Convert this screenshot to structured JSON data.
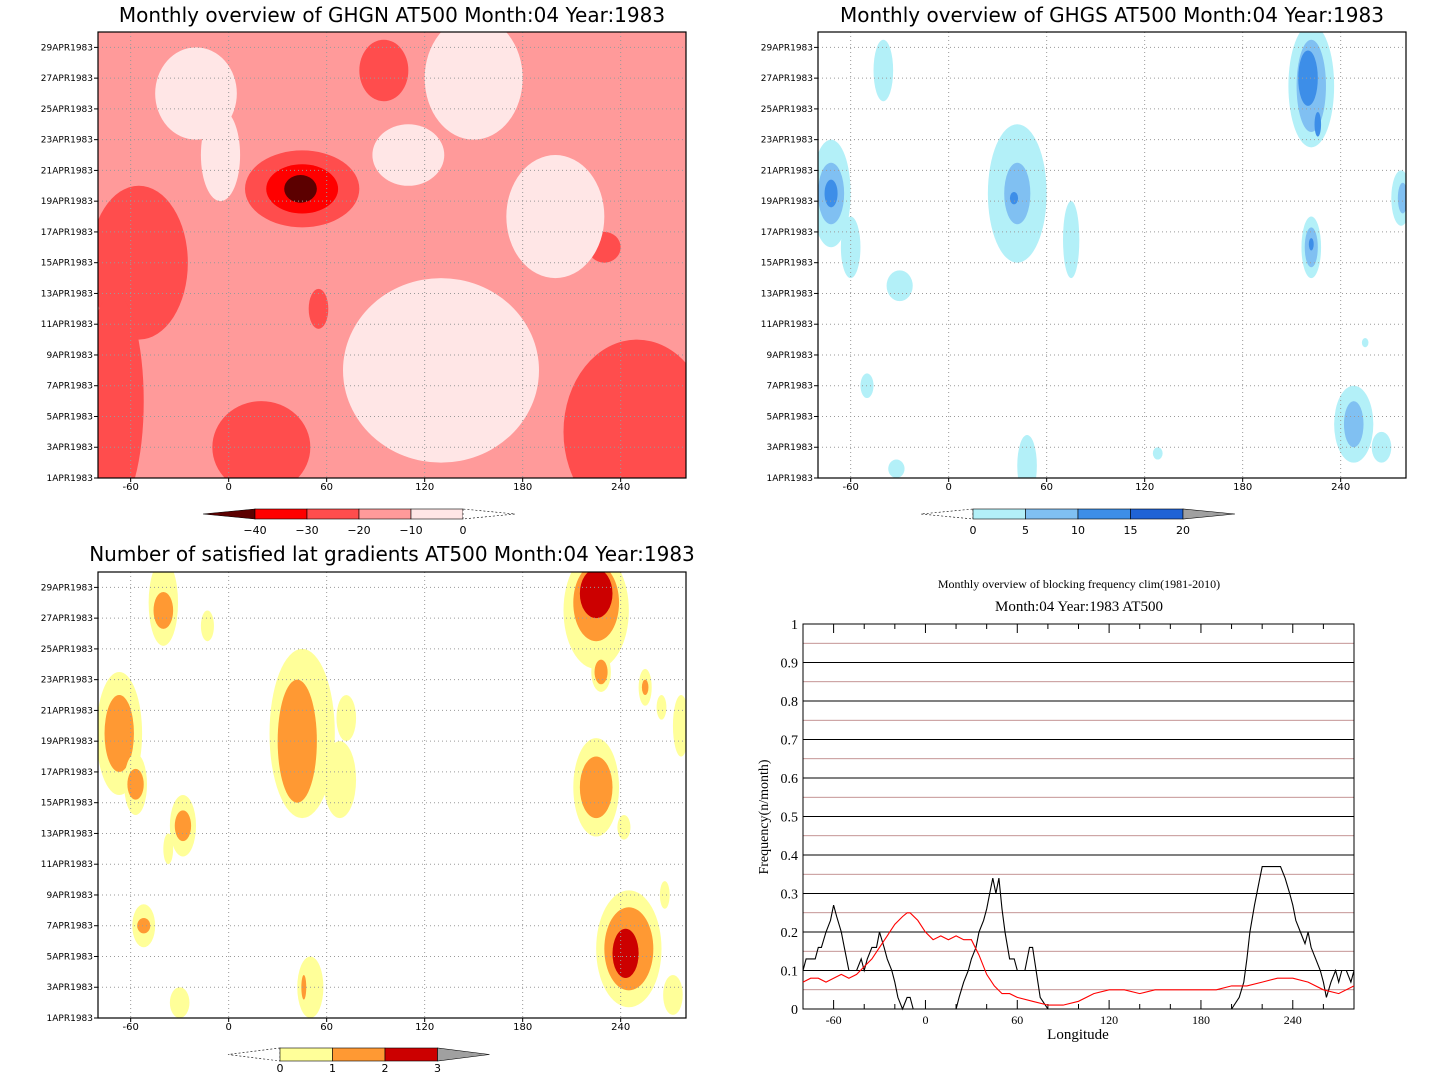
{
  "chart_data": [
    {
      "type": "heatmap",
      "title": "Monthly overview of GHGN AT500 Month:04 Year:1983",
      "x_ticks": [
        "-60",
        "0",
        "60",
        "120",
        "180",
        "240"
      ],
      "y_ticks": [
        "1APR1983",
        "3APR1983",
        "5APR1983",
        "7APR1983",
        "9APR1983",
        "11APR1983",
        "13APR1983",
        "15APR1983",
        "17APR1983",
        "19APR1983",
        "21APR1983",
        "23APR1983",
        "25APR1983",
        "27APR1983",
        "29APR1983"
      ],
      "xlim": [
        -80,
        280
      ],
      "ylim": [
        1,
        30
      ],
      "colorbar": {
        "ticks": [
          "−40",
          "−30",
          "−20",
          "−10",
          "0"
        ],
        "colors": [
          "#5c0000",
          "#ff0000",
          "#ff4d4d",
          "#ff9a9a",
          "#ffe6e6"
        ],
        "open_end_color": "#ffffff"
      },
      "blobs": [
        {
          "x": 45,
          "y": 19.8,
          "rx": 35,
          "ry": 2.5,
          "level": 3
        },
        {
          "x": 45,
          "y": 19.8,
          "rx": 22,
          "ry": 1.6,
          "level": 4
        },
        {
          "x": 44,
          "y": 19.8,
          "rx": 10,
          "ry": 0.9,
          "level": 5
        },
        {
          "x": -55,
          "y": 15,
          "rx": 30,
          "ry": 5,
          "level": 3
        },
        {
          "x": -70,
          "y": 6,
          "rx": 18,
          "ry": 7,
          "level": 3
        },
        {
          "x": 250,
          "y": 4,
          "rx": 45,
          "ry": 6,
          "level": 3
        },
        {
          "x": 20,
          "y": 3,
          "rx": 30,
          "ry": 3,
          "level": 3
        },
        {
          "x": 95,
          "y": 27.5,
          "rx": 15,
          "ry": 2,
          "level": 3
        },
        {
          "x": 55,
          "y": 12,
          "rx": 6,
          "ry": 1.3,
          "level": 3
        },
        {
          "x": 230,
          "y": 16,
          "rx": 10,
          "ry": 1,
          "level": 3
        },
        {
          "x": 130,
          "y": 8,
          "rx": 60,
          "ry": 6,
          "level": 1
        },
        {
          "x": 200,
          "y": 18,
          "rx": 30,
          "ry": 4,
          "level": 1
        },
        {
          "x": 150,
          "y": 27,
          "rx": 30,
          "ry": 4,
          "level": 1
        },
        {
          "x": -20,
          "y": 26,
          "rx": 25,
          "ry": 3,
          "level": 1
        },
        {
          "x": 110,
          "y": 22,
          "rx": 22,
          "ry": 2,
          "level": 1
        },
        {
          "x": -5,
          "y": 22,
          "rx": 12,
          "ry": 3,
          "level": 1
        }
      ]
    },
    {
      "type": "heatmap",
      "title": "Monthly overview of GHGS AT500 Month:04 Year:1983",
      "x_ticks": [
        "-60",
        "0",
        "60",
        "120",
        "180",
        "240"
      ],
      "y_ticks": [
        "1APR1983",
        "3APR1983",
        "5APR1983",
        "7APR1983",
        "9APR1983",
        "11APR1983",
        "13APR1983",
        "15APR1983",
        "17APR1983",
        "19APR1983",
        "21APR1983",
        "23APR1983",
        "25APR1983",
        "27APR1983",
        "29APR1983"
      ],
      "xlim": [
        -80,
        280
      ],
      "ylim": [
        1,
        30
      ],
      "colorbar": {
        "ticks": [
          "0",
          "5",
          "10",
          "15",
          "20"
        ],
        "colors": [
          "#b3f0f8",
          "#80c0f2",
          "#3d8ee8",
          "#1f63d6"
        ],
        "open_end_color": "#a0a0a0"
      },
      "blobs": [
        {
          "x": -72,
          "y": 19.5,
          "rx": 12,
          "ry": 3.5,
          "level": 1
        },
        {
          "x": -72,
          "y": 19.5,
          "rx": 8,
          "ry": 2,
          "level": 2
        },
        {
          "x": -72,
          "y": 19.5,
          "rx": 4,
          "ry": 0.9,
          "level": 3
        },
        {
          "x": -60,
          "y": 16,
          "rx": 6,
          "ry": 2,
          "level": 1
        },
        {
          "x": -40,
          "y": 27.5,
          "rx": 6,
          "ry": 2,
          "level": 1
        },
        {
          "x": 42,
          "y": 19.5,
          "rx": 18,
          "ry": 4.5,
          "level": 1
        },
        {
          "x": 42,
          "y": 19.5,
          "rx": 8,
          "ry": 2,
          "level": 2
        },
        {
          "x": 40,
          "y": 19.2,
          "rx": 2.5,
          "ry": 0.4,
          "level": 3
        },
        {
          "x": 75,
          "y": 16.5,
          "rx": 5,
          "ry": 2.5,
          "level": 1
        },
        {
          "x": -30,
          "y": 13.5,
          "rx": 8,
          "ry": 1,
          "level": 1
        },
        {
          "x": -50,
          "y": 7,
          "rx": 4,
          "ry": 0.8,
          "level": 1
        },
        {
          "x": 48,
          "y": 1.8,
          "rx": 6,
          "ry": 2,
          "level": 1
        },
        {
          "x": -32,
          "y": 1.6,
          "rx": 5,
          "ry": 0.6,
          "level": 1
        },
        {
          "x": 222,
          "y": 26.5,
          "rx": 14,
          "ry": 4,
          "level": 1
        },
        {
          "x": 222,
          "y": 26.5,
          "rx": 9,
          "ry": 3,
          "level": 2
        },
        {
          "x": 220,
          "y": 27,
          "rx": 6,
          "ry": 1.8,
          "level": 3
        },
        {
          "x": 226,
          "y": 24,
          "rx": 2,
          "ry": 0.8,
          "level": 3
        },
        {
          "x": 222,
          "y": 16,
          "rx": 6,
          "ry": 2,
          "level": 1
        },
        {
          "x": 222,
          "y": 16,
          "rx": 4,
          "ry": 1.3,
          "level": 2
        },
        {
          "x": 222,
          "y": 16.2,
          "rx": 1.5,
          "ry": 0.4,
          "level": 3
        },
        {
          "x": 248,
          "y": 4.5,
          "rx": 12,
          "ry": 2.5,
          "level": 1
        },
        {
          "x": 248,
          "y": 4.5,
          "rx": 6,
          "ry": 1.5,
          "level": 2
        },
        {
          "x": 277,
          "y": 19.2,
          "rx": 6,
          "ry": 1.8,
          "level": 1
        },
        {
          "x": 278,
          "y": 19.2,
          "rx": 3,
          "ry": 1,
          "level": 2
        },
        {
          "x": 265,
          "y": 3,
          "rx": 6,
          "ry": 1,
          "level": 1
        },
        {
          "x": 128,
          "y": 2.6,
          "rx": 3,
          "ry": 0.4,
          "level": 1
        },
        {
          "x": 255,
          "y": 9.8,
          "rx": 2,
          "ry": 0.3,
          "level": 1
        }
      ]
    },
    {
      "type": "heatmap",
      "title": "Number of satisfied lat gradients AT500 Month:04 Year:1983",
      "x_ticks": [
        "-60",
        "0",
        "60",
        "120",
        "180",
        "240"
      ],
      "y_ticks": [
        "1APR1983",
        "3APR1983",
        "5APR1983",
        "7APR1983",
        "9APR1983",
        "11APR1983",
        "13APR1983",
        "15APR1983",
        "17APR1983",
        "19APR1983",
        "21APR1983",
        "23APR1983",
        "25APR1983",
        "27APR1983",
        "29APR1983"
      ],
      "xlim": [
        -80,
        280
      ],
      "ylim": [
        1,
        30
      ],
      "colorbar": {
        "ticks": [
          "0",
          "1",
          "2",
          "3"
        ],
        "colors": [
          "#ffff99",
          "#ff9933",
          "#cc0000"
        ],
        "open_end_color": "#a0a0a0"
      },
      "blobs": [
        {
          "x": -67,
          "y": 19.5,
          "rx": 14,
          "ry": 4,
          "level": 1
        },
        {
          "x": -67,
          "y": 19.5,
          "rx": 9,
          "ry": 2.5,
          "level": 2
        },
        {
          "x": -57,
          "y": 16.2,
          "rx": 7,
          "ry": 2,
          "level": 1
        },
        {
          "x": -57,
          "y": 16.2,
          "rx": 5,
          "ry": 1,
          "level": 2
        },
        {
          "x": -40,
          "y": 28,
          "rx": 9,
          "ry": 2.8,
          "level": 1
        },
        {
          "x": -40,
          "y": 27.5,
          "rx": 6,
          "ry": 1.2,
          "level": 2
        },
        {
          "x": -13,
          "y": 26.5,
          "rx": 4,
          "ry": 1,
          "level": 1
        },
        {
          "x": -28,
          "y": 13.5,
          "rx": 8,
          "ry": 2,
          "level": 1
        },
        {
          "x": -28,
          "y": 13.5,
          "rx": 5,
          "ry": 1,
          "level": 2
        },
        {
          "x": -37,
          "y": 12,
          "rx": 3,
          "ry": 1,
          "level": 1
        },
        {
          "x": -52,
          "y": 7,
          "rx": 7,
          "ry": 1.4,
          "level": 1
        },
        {
          "x": -52,
          "y": 7,
          "rx": 4,
          "ry": 0.5,
          "level": 2
        },
        {
          "x": -30,
          "y": 2,
          "rx": 6,
          "ry": 1,
          "level": 1
        },
        {
          "x": 45,
          "y": 19.5,
          "rx": 20,
          "ry": 5.5,
          "level": 1
        },
        {
          "x": 42,
          "y": 19,
          "rx": 12,
          "ry": 4,
          "level": 2
        },
        {
          "x": 72,
          "y": 20.5,
          "rx": 6,
          "ry": 1.5,
          "level": 1
        },
        {
          "x": 68,
          "y": 16.5,
          "rx": 10,
          "ry": 2.5,
          "level": 1
        },
        {
          "x": 50,
          "y": 3,
          "rx": 8,
          "ry": 2,
          "level": 1
        },
        {
          "x": 46,
          "y": 3,
          "rx": 1.5,
          "ry": 0.8,
          "level": 2
        },
        {
          "x": 225,
          "y": 27.5,
          "rx": 20,
          "ry": 3.8,
          "level": 1
        },
        {
          "x": 225,
          "y": 28,
          "rx": 14,
          "ry": 2.5,
          "level": 2
        },
        {
          "x": 225,
          "y": 28.6,
          "rx": 10,
          "ry": 1.6,
          "level": 3
        },
        {
          "x": 228,
          "y": 23.5,
          "rx": 6,
          "ry": 1.3,
          "level": 1
        },
        {
          "x": 228,
          "y": 23.5,
          "rx": 4,
          "ry": 0.8,
          "level": 2
        },
        {
          "x": 225,
          "y": 16,
          "rx": 14,
          "ry": 3.2,
          "level": 1
        },
        {
          "x": 225,
          "y": 16,
          "rx": 10,
          "ry": 2,
          "level": 2
        },
        {
          "x": 245,
          "y": 5.5,
          "rx": 20,
          "ry": 3.8,
          "level": 1
        },
        {
          "x": 245,
          "y": 5.5,
          "rx": 15,
          "ry": 2.7,
          "level": 2
        },
        {
          "x": 243,
          "y": 5.2,
          "rx": 8,
          "ry": 1.6,
          "level": 3
        },
        {
          "x": 255,
          "y": 22.5,
          "rx": 4,
          "ry": 1.2,
          "level": 1
        },
        {
          "x": 255,
          "y": 22.5,
          "rx": 2,
          "ry": 0.5,
          "level": 2
        },
        {
          "x": 265,
          "y": 21.2,
          "rx": 3,
          "ry": 0.8,
          "level": 1
        },
        {
          "x": 277,
          "y": 20,
          "rx": 5,
          "ry": 2,
          "level": 1
        },
        {
          "x": 267,
          "y": 9,
          "rx": 3,
          "ry": 0.9,
          "level": 1
        },
        {
          "x": 272,
          "y": 2.5,
          "rx": 6,
          "ry": 1.3,
          "level": 1
        },
        {
          "x": 242,
          "y": 13.4,
          "rx": 4,
          "ry": 0.8,
          "level": 1
        }
      ]
    },
    {
      "type": "line",
      "title": "Monthly overview of blocking frequency clim(1981-2010)",
      "subtitle": "Month:04 Year:1983  AT500",
      "xlabel": "Longitude",
      "ylabel": "Frequency(n/month)",
      "xlim": [
        -80,
        280
      ],
      "ylim": [
        0,
        1
      ],
      "x_ticks": [
        "-60",
        "0",
        "60",
        "120",
        "180",
        "240"
      ],
      "y_ticks": [
        "0",
        "0.1",
        "0.2",
        "0.3",
        "0.4",
        "0.5",
        "0.6",
        "0.7",
        "0.8",
        "0.9",
        "1"
      ],
      "series": [
        {
          "color": "#000000",
          "x": [
            -80,
            -78,
            -75,
            -72,
            -70,
            -68,
            -65,
            -62,
            -60,
            -58,
            -55,
            -53,
            -50,
            -48,
            -45,
            -42,
            -40,
            -38,
            -35,
            -32,
            -30,
            -27,
            -25,
            -22,
            -20,
            -18,
            -15,
            -12,
            -10,
            -8,
            -5,
            -2,
            0,
            5,
            10,
            15,
            18,
            20,
            22,
            25,
            28,
            30,
            33,
            35,
            38,
            40,
            42,
            44,
            46,
            48,
            50,
            52,
            55,
            58,
            60,
            62,
            65,
            68,
            70,
            75,
            80,
            90,
            100,
            110,
            120,
            130,
            140,
            150,
            160,
            170,
            180,
            190,
            200,
            205,
            208,
            210,
            212,
            215,
            218,
            220,
            222,
            225,
            228,
            230,
            232,
            235,
            238,
            240,
            242,
            245,
            248,
            250,
            252,
            255,
            258,
            260,
            262,
            265,
            268,
            270,
            272,
            275,
            278,
            280
          ],
          "y": [
            0.1,
            0.13,
            0.13,
            0.13,
            0.16,
            0.16,
            0.2,
            0.23,
            0.27,
            0.24,
            0.2,
            0.16,
            0.1,
            0.1,
            0.1,
            0.13,
            0.1,
            0.13,
            0.16,
            0.16,
            0.2,
            0.16,
            0.13,
            0.1,
            0.07,
            0.03,
            0.0,
            0.03,
            0.03,
            0.0,
            0.0,
            0.0,
            0.0,
            0.0,
            0.0,
            0.0,
            0.0,
            0.0,
            0.03,
            0.07,
            0.1,
            0.13,
            0.16,
            0.2,
            0.23,
            0.26,
            0.3,
            0.34,
            0.3,
            0.34,
            0.26,
            0.2,
            0.13,
            0.13,
            0.1,
            0.1,
            0.1,
            0.16,
            0.16,
            0.03,
            0.0,
            0.0,
            0.0,
            0.0,
            0.0,
            0.0,
            0.0,
            0.0,
            0.0,
            0.0,
            0.0,
            0.0,
            0.0,
            0.03,
            0.07,
            0.13,
            0.2,
            0.27,
            0.33,
            0.37,
            0.37,
            0.37,
            0.37,
            0.37,
            0.37,
            0.34,
            0.3,
            0.27,
            0.23,
            0.2,
            0.17,
            0.2,
            0.16,
            0.13,
            0.1,
            0.07,
            0.03,
            0.07,
            0.1,
            0.07,
            0.1,
            0.1,
            0.07,
            0.1
          ]
        },
        {
          "color": "#ff0000",
          "x": [
            -80,
            -75,
            -70,
            -65,
            -60,
            -55,
            -50,
            -45,
            -40,
            -35,
            -30,
            -25,
            -20,
            -15,
            -12,
            -10,
            -5,
            0,
            5,
            10,
            15,
            20,
            25,
            30,
            35,
            40,
            45,
            50,
            55,
            60,
            70,
            80,
            90,
            100,
            110,
            120,
            130,
            140,
            150,
            160,
            170,
            180,
            190,
            200,
            210,
            220,
            230,
            240,
            250,
            260,
            270,
            280
          ],
          "y": [
            0.07,
            0.08,
            0.08,
            0.07,
            0.08,
            0.09,
            0.08,
            0.09,
            0.11,
            0.13,
            0.16,
            0.19,
            0.22,
            0.24,
            0.25,
            0.25,
            0.23,
            0.2,
            0.18,
            0.19,
            0.18,
            0.19,
            0.18,
            0.18,
            0.14,
            0.09,
            0.06,
            0.04,
            0.04,
            0.03,
            0.02,
            0.01,
            0.01,
            0.02,
            0.04,
            0.05,
            0.05,
            0.04,
            0.05,
            0.05,
            0.05,
            0.05,
            0.05,
            0.06,
            0.06,
            0.07,
            0.08,
            0.08,
            0.07,
            0.05,
            0.04,
            0.06
          ]
        }
      ]
    }
  ]
}
